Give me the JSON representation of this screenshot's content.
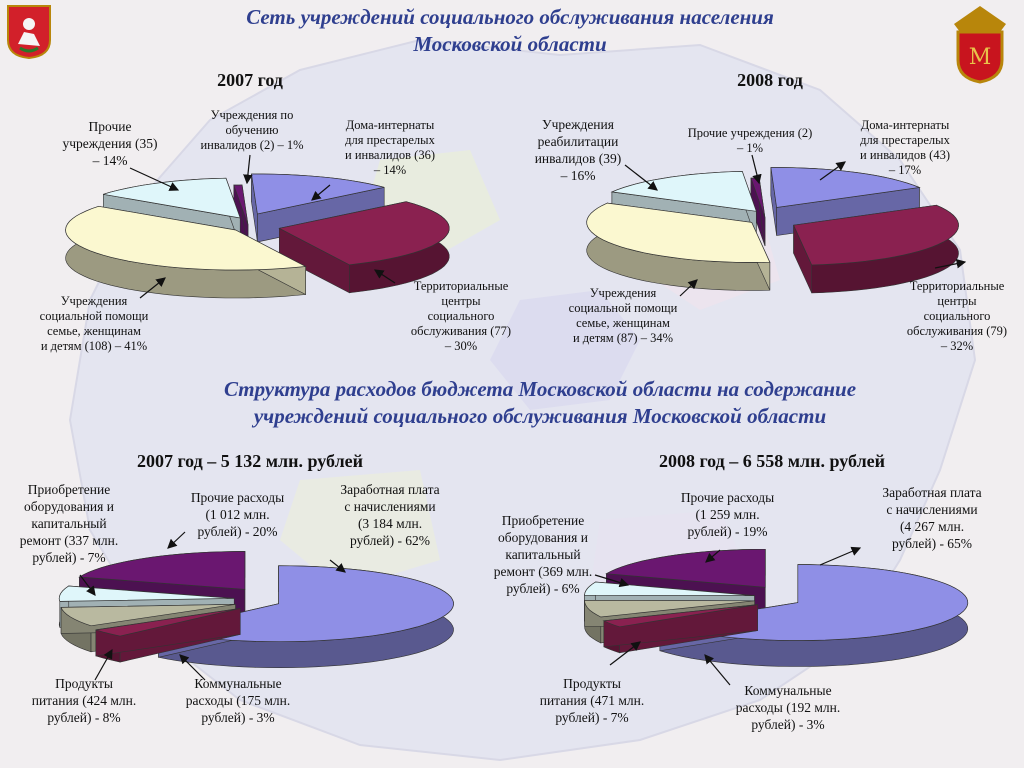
{
  "header": {
    "title_line1": "Сеть учреждений социального обслуживания населения",
    "title_line2": "Московской области"
  },
  "section2": {
    "title_line1": "Структура расходов бюджета Московской области на содержание",
    "title_line2": "учреждений социального обслуживания Московской области"
  },
  "colors": {
    "title": "#2f3f8f",
    "slate": "#8f8fe6",
    "maroon": "#8a2150",
    "cream": "#fbf8d0",
    "lightcyan": "#dff6fa",
    "purple": "#6a1770",
    "olive": "#b9b9a0",
    "teal": "#8fb5b5"
  },
  "chart_data": [
    {
      "type": "pie",
      "title": "2007 год",
      "slices": [
        {
          "label": "Дома-интернаты для престарелых и инвалидов (36) – 14%",
          "count": 36,
          "percent": 14,
          "color": "#8f8fe6"
        },
        {
          "label": "Территориальные центры социального обслуживания (77) – 30%",
          "count": 77,
          "percent": 30,
          "color": "#8a2150"
        },
        {
          "label": "Учреждения социальной помощи семье, женщинам и детям (108) – 41%",
          "count": 108,
          "percent": 41,
          "color": "#fbf8d0"
        },
        {
          "label": "Прочие учреждения (35) – 14%",
          "count": 35,
          "percent": 14,
          "color": "#dff6fa"
        },
        {
          "label": "Учреждения по обучению инвалидов (2) – 1%",
          "count": 2,
          "percent": 1,
          "color": "#6a1770"
        }
      ]
    },
    {
      "type": "pie",
      "title": "2008 год",
      "slices": [
        {
          "label": "Дома-интернаты для престарелых и инвалидов (43) – 17%",
          "count": 43,
          "percent": 17,
          "color": "#8f8fe6"
        },
        {
          "label": "Территориальные центры социального обслуживания (79) – 32%",
          "count": 79,
          "percent": 32,
          "color": "#8a2150"
        },
        {
          "label": "Учреждения социальной помощи семье, женщинам и детям (87) – 34%",
          "count": 87,
          "percent": 34,
          "color": "#fbf8d0"
        },
        {
          "label": "Учреждения реабилитации инвалидов (39) – 16%",
          "count": 39,
          "percent": 16,
          "color": "#dff6fa"
        },
        {
          "label": "Прочие учреждения (2) – 1%",
          "count": 2,
          "percent": 1,
          "color": "#6a1770"
        }
      ]
    },
    {
      "type": "pie",
      "title": "2007 год – 5 132 млн. рублей",
      "total": 5132,
      "slices": [
        {
          "label": "Заработная плата с начислениями (3 184 млн. рублей) - 62%",
          "value": 3184,
          "percent": 62,
          "color": "#8f8fe6"
        },
        {
          "label": "Коммунальные расходы (175 млн. рублей) - 3%",
          "value": 175,
          "percent": 3,
          "color": "#8a2150"
        },
        {
          "label": "Продукты питания (424 млн. рублей) - 8%",
          "value": 424,
          "percent": 8,
          "color": "#b9b9a0"
        },
        {
          "label": "Приобретение оборудования и капитальный ремонт (337 млн. рублей) - 7%",
          "value": 337,
          "percent": 7,
          "color": "#dff6fa"
        },
        {
          "label": "Прочие расходы (1 012 млн. рублей) - 20%",
          "value": 1012,
          "percent": 20,
          "color": "#6a1770"
        }
      ]
    },
    {
      "type": "pie",
      "title": "2008 год – 6 558 млн. рублей",
      "total": 6558,
      "slices": [
        {
          "label": "Заработная плата с начислениями (4 267 млн. рублей) - 65%",
          "value": 4267,
          "percent": 65,
          "color": "#8f8fe6"
        },
        {
          "label": "Коммунальные расходы (192 млн. рублей) - 3%",
          "value": 192,
          "percent": 3,
          "color": "#8a2150"
        },
        {
          "label": "Продукты питания (471 млн. рублей) - 7%",
          "value": 471,
          "percent": 7,
          "color": "#b9b9a0"
        },
        {
          "label": "Приобретение оборудования и капитальный ремонт (369 млн. рублей) - 6%",
          "value": 369,
          "percent": 6,
          "color": "#dff6fa"
        },
        {
          "label": "Прочие расходы (1 259 млн. рублей) - 19%",
          "value": 1259,
          "percent": 19,
          "color": "#6a1770"
        }
      ]
    }
  ],
  "labels": {
    "c1": {
      "training": "Учреждения  по\nобучению\nинвалидов (2) – 1%",
      "other": "Прочие\nучреждения (35)\n– 14%",
      "homes": "Дома-интернаты\nдля престарелых\nи инвалидов (36)\n– 14%",
      "centers": "Территориальные\nцентры\nсоциального\nобслуживания (77)\n– 30%",
      "family": "Учреждения\nсоциальной помощи\nсемье, женщинам\nи детям (108) – 41%"
    },
    "c2": {
      "rehab": "Учреждения\nреабилитации\nинвалидов (39)\n– 16%",
      "other": "Прочие учреждения (2)\n– 1%",
      "homes": "Дома-интернаты\nдля престарелых\nи инвалидов (43)\n– 17%",
      "centers": "Территориальные\nцентры\nсоциального\nобслуживания (79)\n– 32%",
      "family": "Учреждения\nсоциальной помощи\nсемье, женщинам\nи детям (87) – 34%"
    },
    "c3": {
      "equipment": "Приобретение\nоборудования и\nкапитальный\nремонт (337  млн.\nрублей) - 7%",
      "other": "Прочие расходы\n(1 012  млн.\nрублей) - 20%",
      "salary": "Заработная плата\nс начислениями\n(3 184 млн.\nрублей) - 62%",
      "food": "Продукты\nпитания (424 млн.\nрублей) - 8%",
      "utilities": "Коммунальные\nрасходы (175 млн.\nрублей) - 3%"
    },
    "c4": {
      "equipment": "Приобретение\nоборудования и\nкапитальный\nремонт (369  млн.\nрублей) - 6%",
      "other": "Прочие расходы\n(1 259  млн.\nрублей) - 19%",
      "salary": "Заработная плата\nс начислениями\n(4 267 млн.\nрублей) - 65%",
      "food": "Продукты\nпитания (471 млн.\nрублей) - 7%",
      "utilities": "Коммунальные\nрасходы (192 млн.\nрублей) - 3%"
    }
  }
}
